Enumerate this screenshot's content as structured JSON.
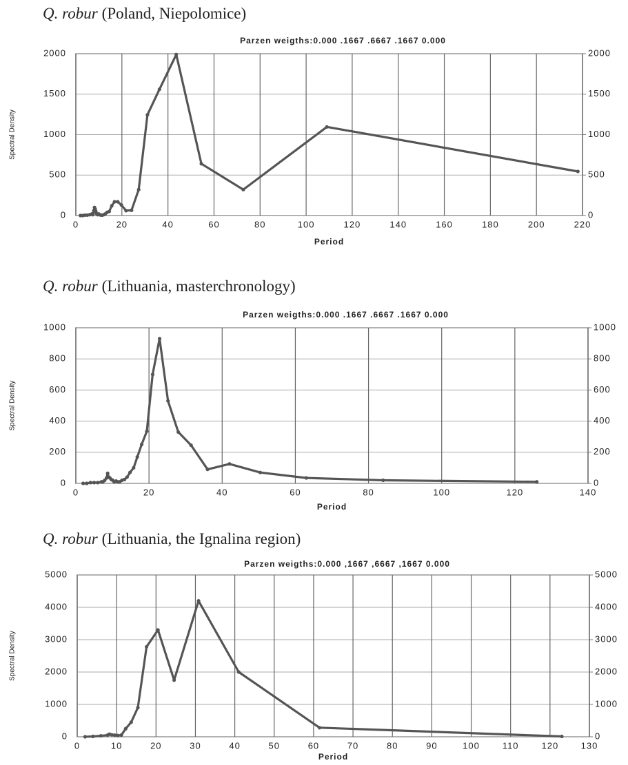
{
  "chart_data": [
    {
      "type": "line",
      "species": "Q. robur",
      "title": "(Poland, Niepolomice)",
      "subtitle": "Parzen weigths:0.000 .1667 .6667 .1667 0.000",
      "x_label": "Period",
      "y_label": "Spectral Density",
      "color": "#555555",
      "grid": true,
      "x": [
        2,
        3,
        4,
        5,
        6,
        7,
        7.3,
        7.5,
        7.8,
        8.1,
        8.4,
        8.7,
        9.1,
        9.5,
        9.9,
        10.4,
        10.9,
        11.5,
        12.1,
        12.8,
        13.6,
        14.5,
        15.6,
        16.8,
        18.2,
        19.8,
        21.8,
        24.2,
        27.3,
        31.1,
        36.3,
        43.6,
        54.5,
        72.7,
        109,
        218
      ],
      "values": [
        0,
        0,
        5,
        5,
        10,
        20,
        10,
        20,
        60,
        100,
        80,
        50,
        20,
        10,
        20,
        10,
        5,
        5,
        10,
        20,
        40,
        50,
        120,
        170,
        170,
        130,
        60,
        65,
        320,
        1245,
        1560,
        1990,
        640,
        320,
        1095,
        545
      ],
      "xlim": [
        0,
        220
      ],
      "xticks": [
        0,
        20,
        40,
        60,
        80,
        100,
        120,
        140,
        160,
        180,
        200,
        220
      ],
      "ylim": [
        0,
        2000
      ],
      "yticks": [
        0,
        500,
        1000,
        1500,
        2000
      ],
      "y2lim": [
        0,
        2000
      ],
      "y2ticks": [
        0,
        500,
        1000,
        1500,
        2000
      ]
    },
    {
      "type": "line",
      "species": "Q. robur",
      "title": "(Lithuania, masterchronology)",
      "subtitle": "Parzen weigths:0.000 .1667 .6667 .1667 0.000",
      "x_label": "Period",
      "y_label": "Spectral Density",
      "color": "#555555",
      "grid": true,
      "x": [
        2,
        3,
        4,
        5,
        6,
        7,
        7.4,
        7.9,
        8.4,
        8.7,
        9,
        9.3,
        9.7,
        10.1,
        10.5,
        11,
        11.5,
        12,
        12.6,
        13.3,
        14,
        14.8,
        15.8,
        16.8,
        18,
        19.4,
        21,
        22.9,
        25.2,
        28,
        31.5,
        36,
        42,
        50.4,
        63,
        84,
        126
      ],
      "values": [
        0,
        0,
        5,
        5,
        5,
        10,
        10,
        20,
        35,
        65,
        40,
        35,
        25,
        20,
        10,
        15,
        10,
        10,
        20,
        25,
        40,
        70,
        100,
        170,
        250,
        335,
        700,
        930,
        530,
        330,
        245,
        90,
        125,
        70,
        35,
        20,
        10
      ],
      "xlim": [
        0,
        140
      ],
      "xticks": [
        0,
        20,
        40,
        60,
        80,
        100,
        120,
        140
      ],
      "ylim": [
        0,
        1000
      ],
      "yticks": [
        0,
        200,
        400,
        600,
        800,
        1000
      ],
      "y2lim": [
        0,
        1000
      ],
      "y2ticks": [
        0,
        200,
        400,
        600,
        800,
        1000
      ]
    },
    {
      "type": "line",
      "species": "Q. robur",
      "title": "(Lithuania, the Ignalina region)",
      "subtitle": "Parzen weigths:0.000 ,1667 ,6667 ,1667 0.000",
      "x_label": "Period",
      "y_label": "Spectral Density",
      "color": "#555555",
      "grid": true,
      "x": [
        2,
        4,
        6,
        7.7,
        8.2,
        8.8,
        9.5,
        10.3,
        11.2,
        12.3,
        13.7,
        15.4,
        17.6,
        20.5,
        24.6,
        30.8,
        41,
        61.5,
        123
      ],
      "values": [
        0,
        10,
        30,
        50,
        80,
        60,
        50,
        40,
        50,
        250,
        450,
        900,
        2780,
        3300,
        1750,
        4200,
        2000,
        280,
        10
      ],
      "xlim": [
        0,
        130
      ],
      "xticks": [
        0,
        10,
        20,
        30,
        40,
        50,
        60,
        70,
        80,
        90,
        100,
        110,
        120,
        130
      ],
      "ylim": [
        0,
        5000
      ],
      "yticks": [
        0,
        1000,
        2000,
        3000,
        4000,
        5000
      ],
      "y2lim": [
        0,
        5000
      ],
      "y2ticks": [
        0,
        1000,
        2000,
        3000,
        4000,
        5000
      ]
    }
  ]
}
